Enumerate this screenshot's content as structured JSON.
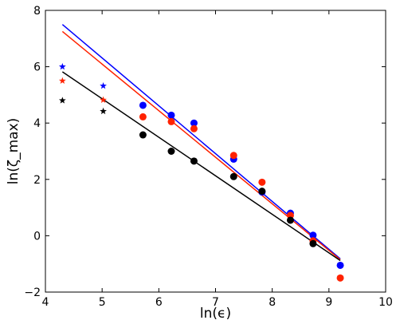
{
  "chart_data": {
    "type": "scatter",
    "title": "",
    "xlabel": "ln(ϵ)",
    "ylabel": "ln(ζ_max)",
    "xlim": [
      4,
      10
    ],
    "ylim": [
      -2,
      8
    ],
    "xticks": [
      "4",
      "5",
      "6",
      "7",
      "8",
      "9",
      "10"
    ],
    "yticks": [
      "−2",
      "0",
      "2",
      "4",
      "6",
      "8"
    ],
    "grid": false,
    "legend": "none",
    "series": [
      {
        "color": "#0000ff",
        "circle_points": [
          [
            5.72,
            4.63
          ],
          [
            6.22,
            4.28
          ],
          [
            6.62,
            4.0
          ],
          [
            7.32,
            2.72
          ],
          [
            7.82,
            1.55
          ],
          [
            8.32,
            0.8
          ],
          [
            8.72,
            0.02
          ],
          [
            9.2,
            -1.05
          ]
        ],
        "star_points": [
          [
            4.3,
            6.0
          ],
          [
            5.02,
            5.32
          ]
        ],
        "fit_line": [
          [
            4.3,
            7.5
          ],
          [
            9.2,
            -0.82
          ]
        ]
      },
      {
        "color": "#ff2200",
        "circle_points": [
          [
            5.72,
            4.22
          ],
          [
            6.22,
            4.05
          ],
          [
            6.62,
            3.8
          ],
          [
            7.32,
            2.85
          ],
          [
            7.82,
            1.9
          ],
          [
            8.32,
            0.72
          ],
          [
            8.72,
            -0.18
          ],
          [
            9.2,
            -1.5
          ]
        ],
        "star_points": [
          [
            4.3,
            5.5
          ],
          [
            5.02,
            4.82
          ]
        ],
        "fit_line": [
          [
            4.3,
            7.25
          ],
          [
            9.2,
            -0.85
          ]
        ]
      },
      {
        "color": "#000000",
        "circle_points": [
          [
            5.72,
            3.58
          ],
          [
            6.22,
            3.0
          ],
          [
            6.62,
            2.65
          ],
          [
            7.32,
            2.1
          ],
          [
            7.82,
            1.58
          ],
          [
            8.32,
            0.55
          ],
          [
            8.72,
            -0.28
          ]
        ],
        "star_points": [
          [
            4.3,
            4.8
          ],
          [
            5.02,
            4.42
          ]
        ],
        "fit_line": [
          [
            4.3,
            5.82
          ],
          [
            9.2,
            -0.88
          ]
        ]
      }
    ]
  }
}
